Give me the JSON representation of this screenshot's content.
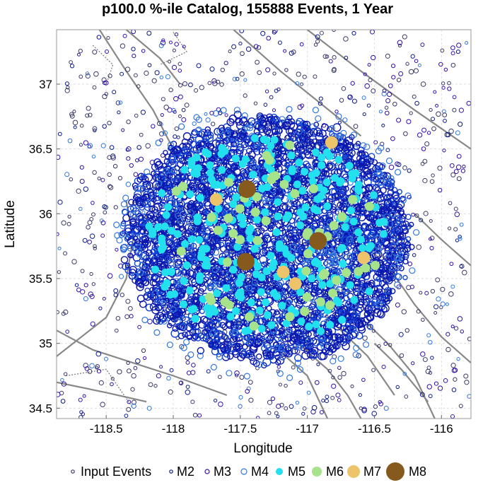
{
  "chart_data": {
    "type": "scatter",
    "title": "p100.0 %-ile Catalog, 155888 Events, 1 Year",
    "xlabel": "Longitude",
    "ylabel": "Latitude",
    "xlim": [
      -118.87,
      -115.78
    ],
    "ylim": [
      34.42,
      37.42
    ],
    "xticks": [
      -118.5,
      -118,
      -117.5,
      -117,
      -116.5,
      -116
    ],
    "xtick_labels": [
      "-118.5",
      "-118",
      "-117.5",
      "-117",
      "-116.5",
      "-116"
    ],
    "yticks": [
      34.5,
      35,
      35.5,
      36,
      36.5,
      37
    ],
    "ytick_labels": [
      "34.5",
      "35",
      "35.5",
      "36",
      "36.5",
      "37"
    ],
    "grid": true,
    "legend_position": "bottom",
    "colors": {
      "input_events": "#3a3a6a",
      "M2": "#0b1a8a",
      "M3": "#3311aa",
      "M4": "#3377dd",
      "M5": "#22e0ee",
      "M6": "#a6e38a",
      "M7": "#eec46a",
      "M8": "#86591c",
      "cluster_dark": "#0a18b0",
      "cluster_mid": "#1446d6",
      "fault_lines": "#888888"
    },
    "cluster_center": [
      -117.3,
      35.8
    ],
    "series": [
      {
        "name": "Input Events",
        "marker": "small open circle",
        "values": []
      },
      {
        "name": "M2",
        "marker": "open circle",
        "values": []
      },
      {
        "name": "M3",
        "marker": "open circle",
        "values": []
      },
      {
        "name": "M4",
        "marker": "open circle",
        "values": []
      },
      {
        "name": "M5",
        "marker": "filled circle",
        "values": []
      },
      {
        "name": "M6",
        "marker": "filled circle",
        "values": []
      },
      {
        "name": "M7",
        "marker": "filled circle",
        "points": [
          [
            -117.68,
            36.11
          ],
          [
            -116.82,
            36.55
          ],
          [
            -117.18,
            35.55
          ],
          [
            -117.09,
            35.46
          ],
          [
            -116.58,
            35.66
          ]
        ]
      },
      {
        "name": "M8",
        "marker": "filled circle",
        "points": [
          [
            -117.45,
            36.19
          ],
          [
            -116.92,
            35.79
          ],
          [
            -117.46,
            35.63
          ]
        ]
      }
    ],
    "legend": [
      {
        "label": "Input Events"
      },
      {
        "label": "M2"
      },
      {
        "label": "M3"
      },
      {
        "label": "M4"
      },
      {
        "label": "M5"
      },
      {
        "label": "M6"
      },
      {
        "label": "M7"
      },
      {
        "label": "M8"
      }
    ]
  }
}
